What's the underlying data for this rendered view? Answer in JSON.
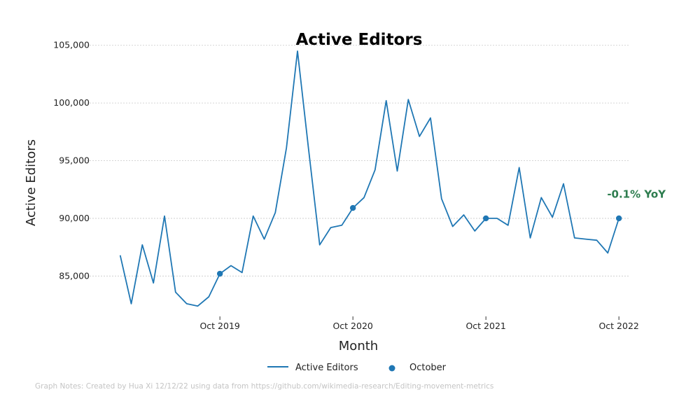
{
  "chart_data": {
    "type": "line",
    "title": "Active Editors",
    "xlabel": "Month",
    "ylabel": "Active Editors",
    "ylim": [
      81500,
      106500
    ],
    "yticks": [
      85000,
      90000,
      95000,
      100000,
      105000
    ],
    "ytick_labels": [
      "85,000",
      "90,000",
      "95,000",
      "100,000",
      "105,000"
    ],
    "xlim": [
      "2018-11",
      "2022-11"
    ],
    "xticks": [
      "2019-10",
      "2020-10",
      "2021-10",
      "2022-10"
    ],
    "xtick_labels": [
      "Oct 2019",
      "Oct 2020",
      "Oct 2021",
      "Oct 2022"
    ],
    "grid": "horizontal",
    "legend_placement": "bottom",
    "series": [
      {
        "name": "Active Editors",
        "type": "line",
        "color": "#1f77b4",
        "x": [
          "2019-01",
          "2019-02",
          "2019-03",
          "2019-04",
          "2019-05",
          "2019-06",
          "2019-07",
          "2019-08",
          "2019-09",
          "2019-10",
          "2019-11",
          "2019-12",
          "2020-01",
          "2020-02",
          "2020-03",
          "2020-04",
          "2020-05",
          "2020-06",
          "2020-07",
          "2020-08",
          "2020-09",
          "2020-10",
          "2020-11",
          "2020-12",
          "2021-01",
          "2021-02",
          "2021-03",
          "2021-04",
          "2021-05",
          "2021-06",
          "2021-07",
          "2021-08",
          "2021-09",
          "2021-10",
          "2021-11",
          "2021-12",
          "2022-01",
          "2022-02",
          "2022-03",
          "2022-04",
          "2022-05",
          "2022-06",
          "2022-07",
          "2022-08",
          "2022-09",
          "2022-10"
        ],
        "values": [
          86800,
          82600,
          87700,
          84400,
          90200,
          83600,
          82600,
          82400,
          83200,
          85200,
          85900,
          85300,
          90200,
          88200,
          90500,
          96100,
          104500,
          96000,
          87700,
          89200,
          89400,
          90900,
          91800,
          94200,
          100200,
          94100,
          100300,
          97100,
          98700,
          91700,
          89300,
          90300,
          88900,
          90000,
          90000,
          89400,
          94400,
          88300,
          91800,
          90100,
          93000,
          88300,
          88200,
          88100,
          87000,
          90000
        ]
      },
      {
        "name": "October",
        "type": "scatter",
        "color": "#1f77b4",
        "x": [
          "2019-10",
          "2020-10",
          "2021-10",
          "2022-10"
        ],
        "values": [
          85200,
          90900,
          90000,
          90000
        ]
      }
    ],
    "annotations": [
      {
        "text": "-0.1% YoY",
        "x": "2022-10",
        "y": 92100,
        "color": "#2e7d4f"
      }
    ]
  },
  "footer_note": "Graph Notes: Created by Hua Xi 12/12/22 using data from https://github.com/wikimedia-research/Editing-movement-metrics"
}
